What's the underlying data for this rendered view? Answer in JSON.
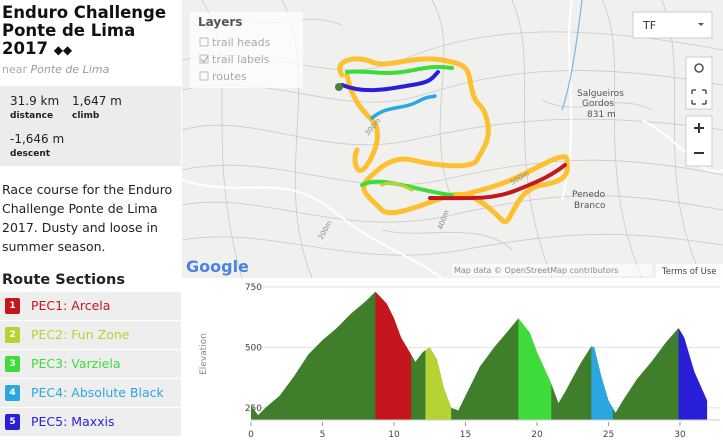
{
  "sidebar": {
    "title": "Enduro Challenge Ponte de Lima 2017",
    "near": "near",
    "place": "Ponte de Lima",
    "stats": [
      {
        "value": "31.9 km",
        "label": "distance"
      },
      {
        "value": "1,647 m",
        "label": "climb"
      },
      {
        "value": "-1,646 m",
        "label": "descent"
      }
    ],
    "description": "Race course for the Enduro Challenge Ponte de Lima 2017. Dusty and loose in summer season.",
    "sections_title": "Route Sections",
    "sections": [
      {
        "number": "1",
        "name": "PEC1: Arcela",
        "color": "#c4161c"
      },
      {
        "number": "2",
        "name": "PEC2: Fun Zone",
        "color": "#b5d334"
      },
      {
        "number": "3",
        "name": "PEC3: Varziela",
        "color": "#3ddc3a"
      },
      {
        "number": "4",
        "name": "PEC4: Absolute Black",
        "color": "#2aa7e0"
      },
      {
        "number": "5",
        "name": "PEC5: Maxxis",
        "color": "#2a1fd8"
      }
    ]
  },
  "map": {
    "layers_title": "Layers",
    "layers": [
      "trail heads",
      "trail labels",
      "routes"
    ],
    "basemap": "TF",
    "labels": [
      "Salgueiros",
      "Gordos",
      "831 m",
      "Penedo",
      "Branco",
      "300m",
      "500m",
      "400m",
      "200m"
    ],
    "google": "Google",
    "attribution": "Map data © OpenStreetMap contributors",
    "terms": "Terms of Use"
  },
  "elevation": {
    "ylabel": "Elevation",
    "xlim": [
      0,
      32.1
    ],
    "ylim": [
      200,
      760
    ],
    "xticks": [
      0,
      5,
      10,
      15,
      20,
      25,
      30
    ],
    "yticks": [
      250,
      500,
      750
    ],
    "grid": true,
    "base_color": "#3f7f2c",
    "x": [
      0,
      0.5,
      1,
      2,
      3,
      4,
      5,
      6,
      7,
      8,
      8.7,
      9.5,
      10,
      10.5,
      11.2,
      11.5,
      12,
      12.5,
      13,
      13.5,
      14,
      14.5,
      15,
      16,
      17,
      18,
      18.7,
      19.5,
      20,
      21,
      21.5,
      22,
      23,
      23.8,
      24,
      24.5,
      25,
      25.5,
      26,
      27,
      28,
      29,
      29.9,
      30.3,
      31,
      31.9
    ],
    "values": [
      260,
      220,
      250,
      300,
      380,
      470,
      530,
      580,
      640,
      690,
      730,
      680,
      620,
      540,
      470,
      440,
      480,
      500,
      450,
      330,
      250,
      240,
      300,
      420,
      500,
      570,
      620,
      560,
      480,
      350,
      270,
      320,
      430,
      505,
      500,
      380,
      280,
      230,
      280,
      370,
      440,
      520,
      580,
      540,
      400,
      280
    ],
    "sections": [
      [
        8.7,
        11.2
      ],
      [
        12.2,
        14
      ],
      [
        18.7,
        21
      ],
      [
        23.8,
        25.3
      ],
      [
        29.9,
        31.9
      ]
    ]
  }
}
